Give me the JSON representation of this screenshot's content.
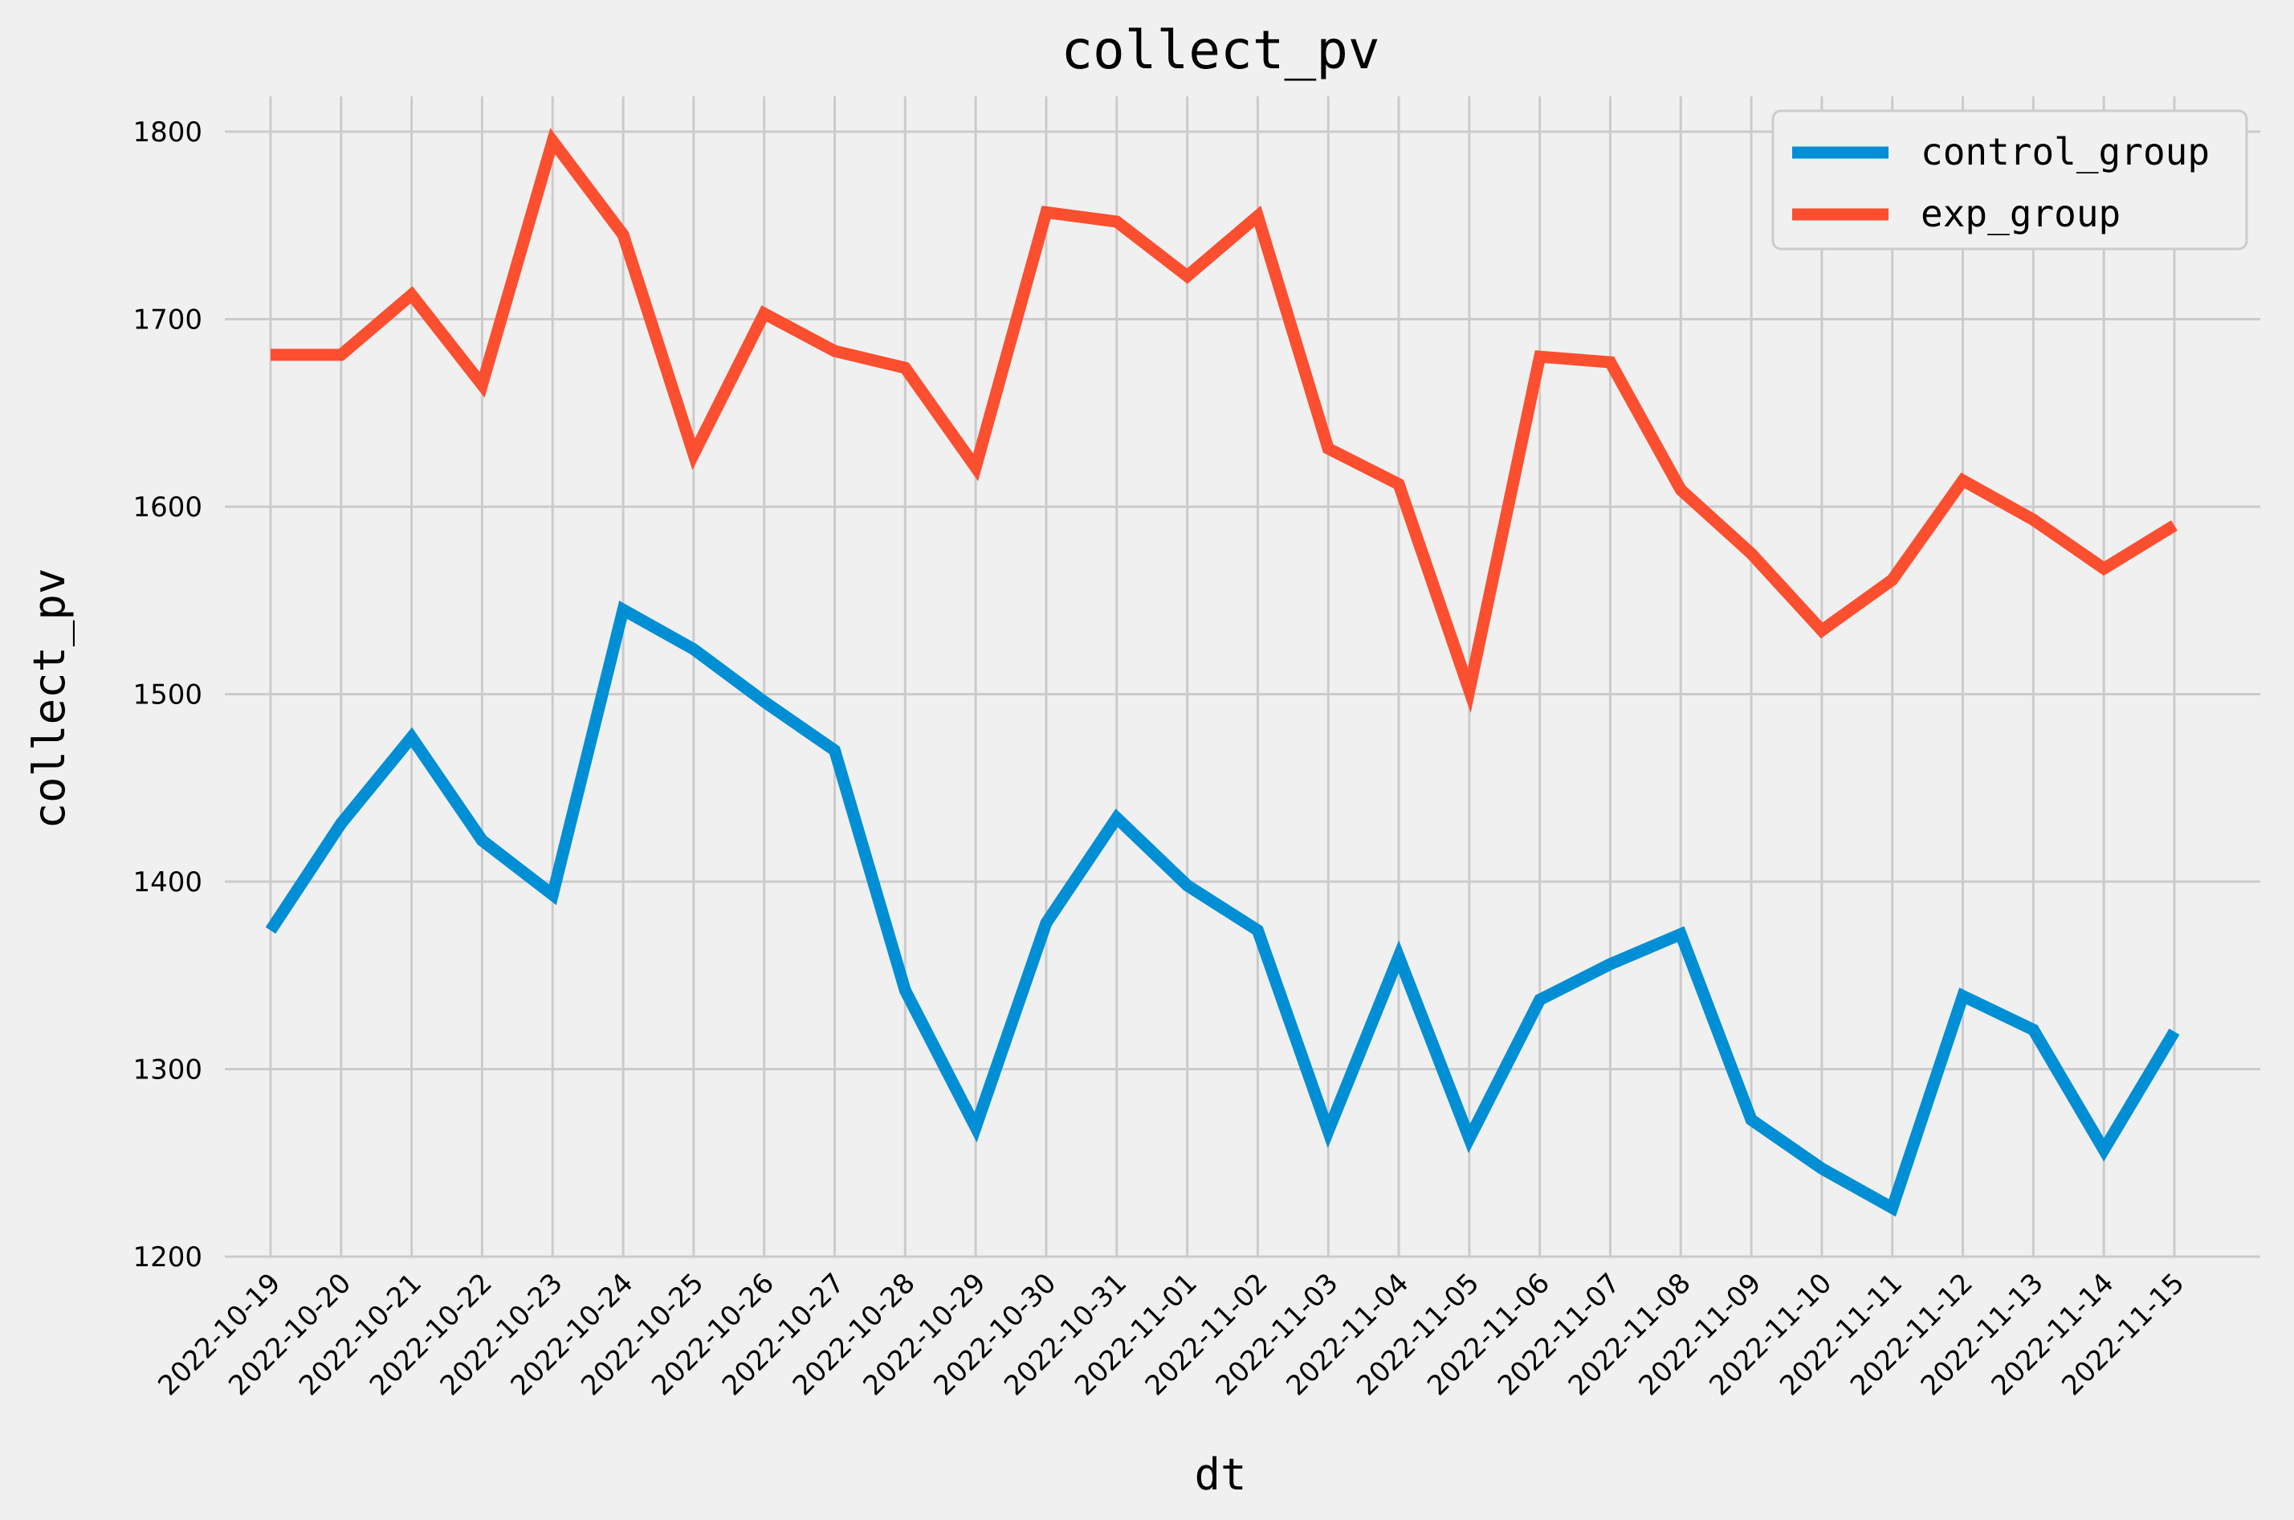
{
  "chart_data": {
    "type": "line",
    "title": "collect_pv",
    "xlabel": "dt",
    "ylabel": "collect_pv",
    "ylim": [
      1200,
      1800
    ],
    "yticks": [
      1200,
      1300,
      1400,
      1500,
      1600,
      1700,
      1800
    ],
    "grid": true,
    "legend_position": "top-right",
    "categories": [
      "2022-10-19",
      "2022-10-20",
      "2022-10-21",
      "2022-10-22",
      "2022-10-23",
      "2022-10-24",
      "2022-10-25",
      "2022-10-26",
      "2022-10-27",
      "2022-10-28",
      "2022-10-29",
      "2022-10-30",
      "2022-10-31",
      "2022-11-01",
      "2022-11-02",
      "2022-11-03",
      "2022-11-04",
      "2022-11-05",
      "2022-11-06",
      "2022-11-07",
      "2022-11-08",
      "2022-11-09",
      "2022-11-10",
      "2022-11-11",
      "2022-11-12",
      "2022-11-13",
      "2022-11-14",
      "2022-11-15"
    ],
    "series": [
      {
        "name": "control_group",
        "color": "#008fd5",
        "values": [
          1374,
          1431,
          1477,
          1422,
          1393,
          1545,
          1524,
          1496,
          1470,
          1342,
          1269,
          1378,
          1434,
          1398,
          1374,
          1267,
          1360,
          1263,
          1337,
          1356,
          1372,
          1273,
          1247,
          1226,
          1339,
          1321,
          1257,
          1320
        ]
      },
      {
        "name": "exp_group",
        "color": "#fc4f30",
        "values": [
          1681,
          1681,
          1713,
          1665,
          1795,
          1745,
          1628,
          1703,
          1683,
          1674,
          1621,
          1757,
          1752,
          1723,
          1755,
          1631,
          1612,
          1502,
          1680,
          1677,
          1609,
          1575,
          1534,
          1561,
          1614,
          1593,
          1567,
          1590
        ]
      }
    ]
  }
}
